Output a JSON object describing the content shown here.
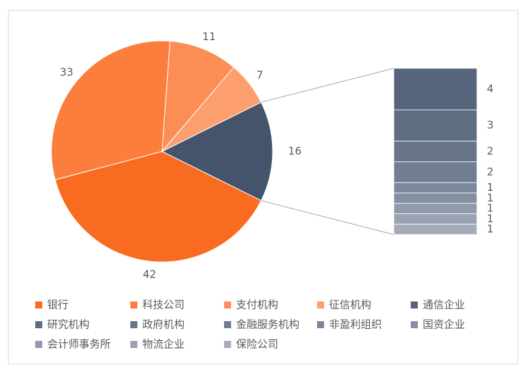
{
  "chart_data": {
    "type": "pie-of-bar",
    "pie": {
      "categories": [
        "银行",
        "科技公司",
        "支付机构",
        "征信机构"
      ],
      "values": [
        42,
        33,
        11,
        7
      ],
      "colors": [
        "#f96b20",
        "#fb7e3c",
        "#fc8e55",
        "#fd9e6e"
      ]
    },
    "other_value": 16,
    "other_color": "#44546a",
    "bar": {
      "categories": [
        "通信企业",
        "研究机构",
        "政府机构",
        "金融服务机构",
        "非盈利组织",
        "国资企业",
        "会计师事务所",
        "物流企业",
        "保险公司"
      ],
      "values": [
        4,
        3,
        2,
        2,
        1,
        1,
        1,
        1,
        1
      ],
      "colors": [
        "#56657b",
        "#5f6d82",
        "#67748a",
        "#717e92",
        "#7b879a",
        "#8590a3",
        "#9199aa",
        "#9aa2b1",
        "#a5acb9"
      ]
    }
  }
}
